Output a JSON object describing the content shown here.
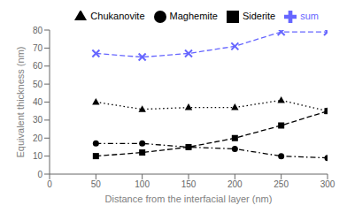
{
  "chart_data": {
    "type": "line",
    "x": [
      50,
      100,
      150,
      200,
      250,
      300
    ],
    "xlabel": "Distance from the interfacial layer (nm)",
    "ylabel": "Equivalent thickness (nm)",
    "xlim": [
      0,
      300
    ],
    "ylim": [
      0,
      80
    ],
    "xticks": [
      0,
      50,
      100,
      150,
      200,
      250,
      300
    ],
    "yticks": [
      0,
      10,
      20,
      30,
      40,
      50,
      60,
      70,
      80
    ],
    "grid": false,
    "legend": "upper right",
    "series": [
      {
        "name": "Siderite",
        "color": "black",
        "marker": "square",
        "line_style": "dashed",
        "values": [
          10,
          12,
          15,
          20,
          27,
          35
        ]
      },
      {
        "name": "Chukanovite",
        "color": "black",
        "marker": "triangle",
        "line_style": "dotted",
        "values": [
          40,
          36,
          37,
          37,
          41,
          35
        ]
      },
      {
        "name": "Maghemite",
        "color": "black",
        "marker": "circle",
        "line_style": "dashdot",
        "values": [
          17,
          17,
          15,
          14,
          10,
          9
        ]
      },
      {
        "name": "sum",
        "color": "#6666ff",
        "marker": "x",
        "line_style": "dashed",
        "values": [
          67,
          65,
          67,
          71,
          79,
          79
        ]
      }
    ]
  }
}
